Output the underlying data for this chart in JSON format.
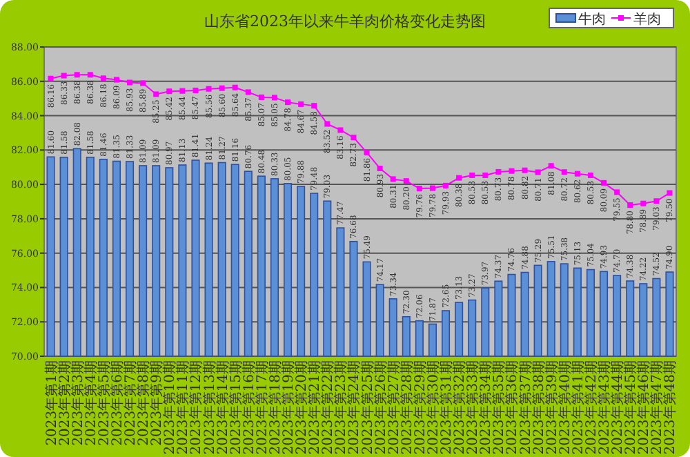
{
  "chart_data": {
    "type": "bar",
    "title": "山东省2023年以来牛羊肉价格变化走势图",
    "categories": [
      "2023年第1期",
      "2023年第2期",
      "2023年第3期",
      "2023年第4期",
      "2023年第5期",
      "2023年第6期",
      "2023年第7期",
      "2023年第8期",
      "2023年第9期",
      "2023年第10期",
      "2023年第11期",
      "2023年第12期",
      "2023年第13期",
      "2023年第14期",
      "2023年第15期",
      "2023年第16期",
      "2023年第17期",
      "2023年第18期",
      "2023年第19期",
      "2023年第20期",
      "2023年第21期",
      "2023年第22期",
      "2023年第23期",
      "2023年第24期",
      "2023年第25期",
      "2023年第26期",
      "2023年第27期",
      "2023年第28期",
      "2023年第29期",
      "2023年第30期",
      "2023年第31期",
      "2023年第32期",
      "2023年第33期",
      "2023年第34期",
      "2023年第35期",
      "2023年第36期",
      "2023年第37期",
      "2023年第38期",
      "2023年第39期",
      "2023年第40期",
      "2023年第41期",
      "2023年第42期",
      "2023年第43期",
      "2023年第44期",
      "2023年第45期",
      "2023年第46期",
      "2023年第47期",
      "2023年第48期"
    ],
    "series": [
      {
        "name": "牛肉",
        "color": "#5b8fd6",
        "values": [
          81.6,
          81.58,
          82.08,
          81.58,
          81.46,
          81.35,
          81.33,
          81.09,
          81.09,
          80.97,
          81.13,
          81.41,
          81.24,
          81.27,
          81.16,
          80.76,
          80.48,
          80.33,
          80.05,
          79.88,
          79.48,
          79.03,
          77.47,
          76.68,
          75.49,
          74.17,
          73.34,
          72.3,
          72.06,
          71.87,
          72.65,
          73.13,
          73.27,
          73.97,
          74.37,
          74.76,
          74.88,
          75.29,
          75.51,
          75.38,
          75.13,
          75.04,
          74.93,
          74.7,
          74.38,
          74.22,
          74.52,
          74.9
        ],
        "value_labels": [
          "81.60",
          "81.58",
          "82.08",
          "81.58",
          "81.46",
          "81.35",
          "81.33",
          "81.09",
          "81.09",
          "80.97",
          "81.13",
          "81.41",
          "81.24",
          "81.27",
          "81.16",
          "80.76",
          "80.48",
          "80.33",
          "80.05",
          "79.88",
          "79.48",
          "79.03",
          "77.47",
          "76.68",
          "75.49",
          "74.17",
          "73.34",
          "72.30",
          "72.06",
          "71.87",
          "72.65",
          "73.13",
          "73.27",
          "73.97",
          "74.37",
          "74.76",
          "74.88",
          "75.29",
          "75.51",
          "75.38",
          "75.13",
          "75.04",
          "74.93",
          "74.70",
          "74.38",
          "74.22",
          "74.52",
          "74.90"
        ]
      },
      {
        "name": "羊肉",
        "type": "line",
        "color": "#ff00ff",
        "values": [
          86.16,
          86.33,
          86.38,
          86.38,
          86.18,
          86.09,
          85.93,
          85.89,
          85.25,
          85.42,
          85.44,
          85.47,
          85.56,
          85.6,
          85.64,
          85.37,
          85.07,
          85.05,
          84.78,
          84.67,
          84.58,
          83.52,
          83.16,
          82.73,
          81.86,
          80.93,
          80.31,
          80.2,
          79.76,
          79.78,
          79.93,
          80.38,
          80.53,
          80.53,
          80.73,
          80.78,
          80.82,
          80.71,
          81.08,
          80.72,
          80.62,
          80.53,
          80.09,
          79.55,
          78.8,
          78.89,
          79.03,
          79.5
        ],
        "value_labels": [
          "86.16",
          "86.33",
          "86.38",
          "86.38",
          "86.18",
          "86.09",
          "85.93",
          "85.89",
          "85.25",
          "85.42",
          "85.44",
          "85.47",
          "85.56",
          "85.60",
          "85.64",
          "85.37",
          "85.07",
          "85.05",
          "84.78",
          "84.67",
          "84.58",
          "83.52",
          "83.16",
          "82.73",
          "81.86",
          "80.93",
          "80.31",
          "80.20",
          "79.76",
          "79.78",
          "79.93",
          "80.38",
          "80.53",
          "80.53",
          "80.73",
          "80.78",
          "80.82",
          "80.71",
          "81.08",
          "80.72",
          "80.62",
          "80.53",
          "80.09",
          "79.55",
          "78.80",
          "78.89",
          "79.03",
          "79.50"
        ]
      }
    ],
    "ylim": [
      70,
      88
    ],
    "yticks": [
      {
        "value": 70,
        "label": "70.00"
      },
      {
        "value": 72,
        "label": "72.00"
      },
      {
        "value": 74,
        "label": "74.00"
      },
      {
        "value": 76,
        "label": "76.00"
      },
      {
        "value": 78,
        "label": "78.00"
      },
      {
        "value": 80,
        "label": "80.00"
      },
      {
        "value": 82,
        "label": "82.00"
      },
      {
        "value": 84,
        "label": "84.00"
      },
      {
        "value": 86,
        "label": "86.00"
      },
      {
        "value": 88,
        "label": "88.00"
      }
    ],
    "grid": "y",
    "legend": "top right",
    "marker": "square"
  }
}
